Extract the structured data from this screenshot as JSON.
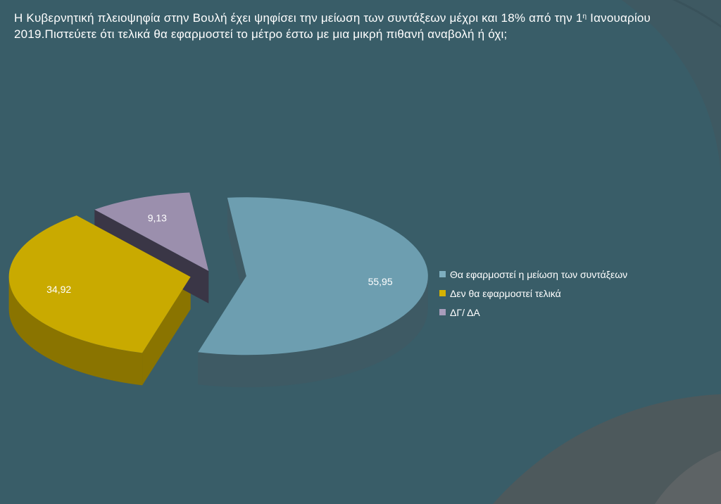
{
  "title": {
    "line1_main": "Η Κυβερνητική πλειοψηφία στην Βουλή έχει ψηφίσει την μείωση των συντάξεων μέχρι και 18% από την 1",
    "line1_sup": "η",
    "line1_tail": " Ιανουαρίου",
    "line2": "2019.Πιστεύετε ότι τελικά θα εφαρμοστεί το μέτρο έστω με μια μικρή πιθανή αναβολή   ή όχι;"
  },
  "chart_data": {
    "type": "pie",
    "style": "3d-exploded",
    "slices": [
      {
        "label": "Θα εφαρμοστεί η μείωση των συντάξεων",
        "value": 55.95,
        "value_label": "55,95",
        "color": "#6d9eb0",
        "side_color": "#3e5a64"
      },
      {
        "label": "Δεν θα εφαρμοστεί τελικά",
        "value": 34.92,
        "value_label": "34,92",
        "color": "#c9aa00",
        "side_color": "#8a7400"
      },
      {
        "label": "ΔΓ/ ΔΑ",
        "value": 9.13,
        "value_label": "9,13",
        "color": "#9b8fad",
        "side_color": "#3a3646"
      }
    ],
    "legend_position": "right"
  },
  "legend": {
    "items": [
      {
        "label": "Θα εφαρμοστεί η μείωση των συντάξεων",
        "color": "#7eaebf"
      },
      {
        "label": "Δεν θα εφαρμοστεί τελικά",
        "color": "#d4b200"
      },
      {
        "label": "ΔΓ/ ΔΑ",
        "color": "#a89cbb"
      }
    ]
  }
}
